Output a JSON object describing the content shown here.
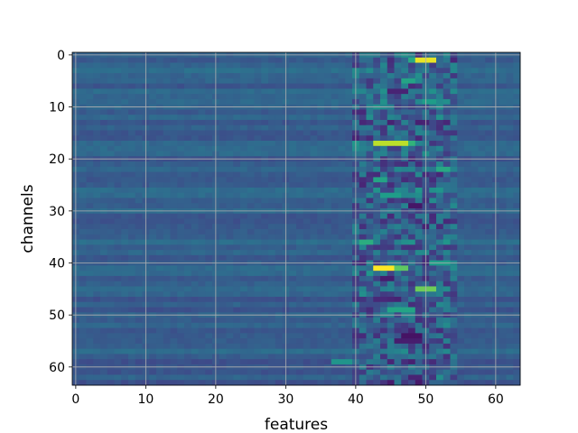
{
  "chart_data": {
    "type": "heatmap",
    "title": "",
    "xlabel": "features",
    "ylabel": "channels",
    "n_rows": 64,
    "n_cols": 64,
    "xlim": [
      -0.5,
      63.5
    ],
    "ylim": [
      63.5,
      -0.5
    ],
    "xticks": [
      0,
      10,
      20,
      30,
      40,
      50,
      60
    ],
    "yticks": [
      0,
      10,
      20,
      30,
      40,
      50,
      60
    ],
    "xtick_labels": [
      "0",
      "10",
      "20",
      "30",
      "40",
      "50",
      "60"
    ],
    "ytick_labels": [
      "0",
      "10",
      "20",
      "30",
      "40",
      "50",
      "60"
    ],
    "grid": true,
    "colormap": "viridis",
    "value_range": [
      0,
      1
    ],
    "baseline_value": 0.3,
    "notable_cells": [
      {
        "row": 1,
        "cols": [
          49,
          50,
          51
        ],
        "value": 0.97
      },
      {
        "row": 1,
        "cols": [
          48
        ],
        "value": 0.6
      },
      {
        "row": 17,
        "cols": [
          43,
          44,
          45,
          46,
          47
        ],
        "value": 0.9
      },
      {
        "row": 17,
        "cols": [
          48
        ],
        "value": 0.65
      },
      {
        "row": 41,
        "cols": [
          43,
          44,
          45
        ],
        "value": 1.0
      },
      {
        "row": 41,
        "cols": [
          46,
          47
        ],
        "value": 0.75
      },
      {
        "row": 45,
        "cols": [
          49,
          50,
          51
        ],
        "value": 0.78
      },
      {
        "row": 36,
        "cols": [
          41,
          42
        ],
        "value": 0.62
      },
      {
        "row": 40,
        "cols": [
          51,
          52,
          53
        ],
        "value": 0.55
      },
      {
        "row": 22,
        "cols": [
          52,
          53
        ],
        "value": 0.6
      },
      {
        "row": 24,
        "cols": [
          43,
          44
        ],
        "value": 0.58
      },
      {
        "row": 27,
        "cols": [
          44,
          45,
          46
        ],
        "value": 0.55
      },
      {
        "row": 49,
        "cols": [
          45,
          46,
          47,
          48
        ],
        "value": 0.58
      },
      {
        "row": 9,
        "cols": [
          50,
          51
        ],
        "value": 0.55
      },
      {
        "row": 5,
        "cols": [
          47,
          48
        ],
        "value": 0.58
      },
      {
        "row": 59,
        "cols": [
          37,
          38,
          39
        ],
        "value": 0.52
      },
      {
        "row": 54,
        "cols": [
          47,
          48,
          49
        ],
        "value": 0.05
      },
      {
        "row": 55,
        "cols": [
          46,
          47,
          48,
          49
        ],
        "value": 0.08
      },
      {
        "row": 29,
        "cols": [
          48,
          49
        ],
        "value": 0.06
      },
      {
        "row": 7,
        "cols": [
          45,
          46,
          47
        ],
        "value": 0.1
      },
      {
        "row": 43,
        "cols": [
          44,
          45
        ],
        "value": 0.08
      },
      {
        "row": 62,
        "cols": [
          48,
          49
        ],
        "value": 0.1
      }
    ],
    "active_band_cols": [
      40,
      54
    ]
  }
}
